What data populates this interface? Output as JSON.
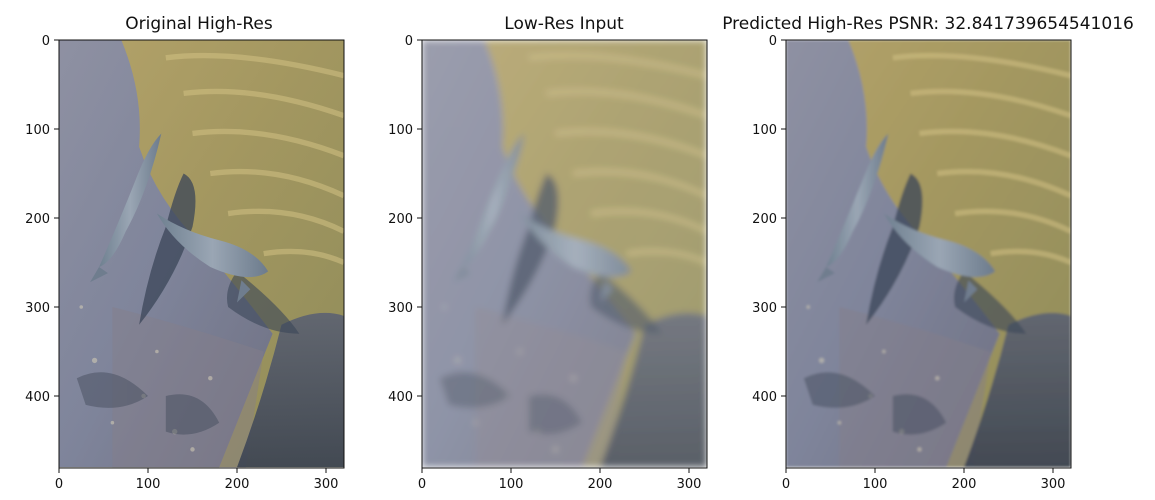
{
  "figure": {
    "panels": [
      {
        "title": "Original High-Res",
        "xticks": [
          "0",
          "100",
          "200",
          "300"
        ],
        "yticks": [
          "0",
          "100",
          "200",
          "300",
          "400"
        ]
      },
      {
        "title": "Low-Res Input",
        "xticks": [
          "0",
          "100",
          "200",
          "300"
        ],
        "yticks": [
          "0",
          "100",
          "200",
          "300",
          "400"
        ]
      },
      {
        "title": "Predicted High-Res PSNR: 32.841739654541016",
        "xticks": [
          "0",
          "100",
          "200",
          "300"
        ],
        "yticks": [
          "0",
          "100",
          "200",
          "300",
          "400"
        ]
      }
    ],
    "image_extent": {
      "x": [
        0,
        320
      ],
      "y": [
        0,
        480
      ]
    },
    "colors": {
      "water_sandy": "#a69a62",
      "water_blue": "#7b84a0",
      "shadow": "#3f4a5c",
      "fish": "#7d8c9c"
    }
  }
}
